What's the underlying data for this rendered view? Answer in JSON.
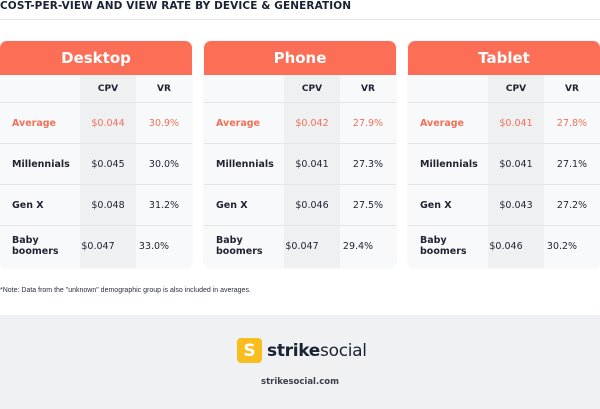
{
  "title": "COST-PER-VIEW AND VIEW RATE BY DEVICE & GENERATION",
  "columns": {
    "cpv": "CPV",
    "vr": "VR"
  },
  "colors": {
    "accent": "#fd6e57",
    "average_text": "#f0715a",
    "logo_badge": "#f8bd1e",
    "footer_bg": "#f0f1f3"
  },
  "devices": [
    {
      "name": "Desktop",
      "rows": [
        {
          "label": "Average",
          "cpv": "$0.044",
          "vr": "30.9%"
        },
        {
          "label": "Millennials",
          "cpv": "$0.045",
          "vr": "30.0%"
        },
        {
          "label": "Gen X",
          "cpv": "$0.048",
          "vr": "31.2%"
        },
        {
          "label": "Baby boomers",
          "cpv": "$0.047",
          "vr": "33.0%"
        }
      ]
    },
    {
      "name": "Phone",
      "rows": [
        {
          "label": "Average",
          "cpv": "$0.042",
          "vr": "27.9%"
        },
        {
          "label": "Millennials",
          "cpv": "$0.041",
          "vr": "27.3%"
        },
        {
          "label": "Gen X",
          "cpv": "$0.046",
          "vr": "27.5%"
        },
        {
          "label": "Baby boomers",
          "cpv": "$0.047",
          "vr": "29.4%"
        }
      ]
    },
    {
      "name": "Tablet",
      "rows": [
        {
          "label": "Average",
          "cpv": "$0.041",
          "vr": "27.8%"
        },
        {
          "label": "Millennials",
          "cpv": "$0.041",
          "vr": "27.1%"
        },
        {
          "label": "Gen X",
          "cpv": "$0.043",
          "vr": "27.2%"
        },
        {
          "label": "Baby boomers",
          "cpv": "$0.046",
          "vr": "30.2%"
        }
      ]
    }
  ],
  "note": "*Note: Data from the \"unknown\" demographic group is also included in averages.",
  "footer": {
    "logo_glyph": "S",
    "logo_bold": "strike",
    "logo_light": "social",
    "url": "strikesocial.com"
  }
}
